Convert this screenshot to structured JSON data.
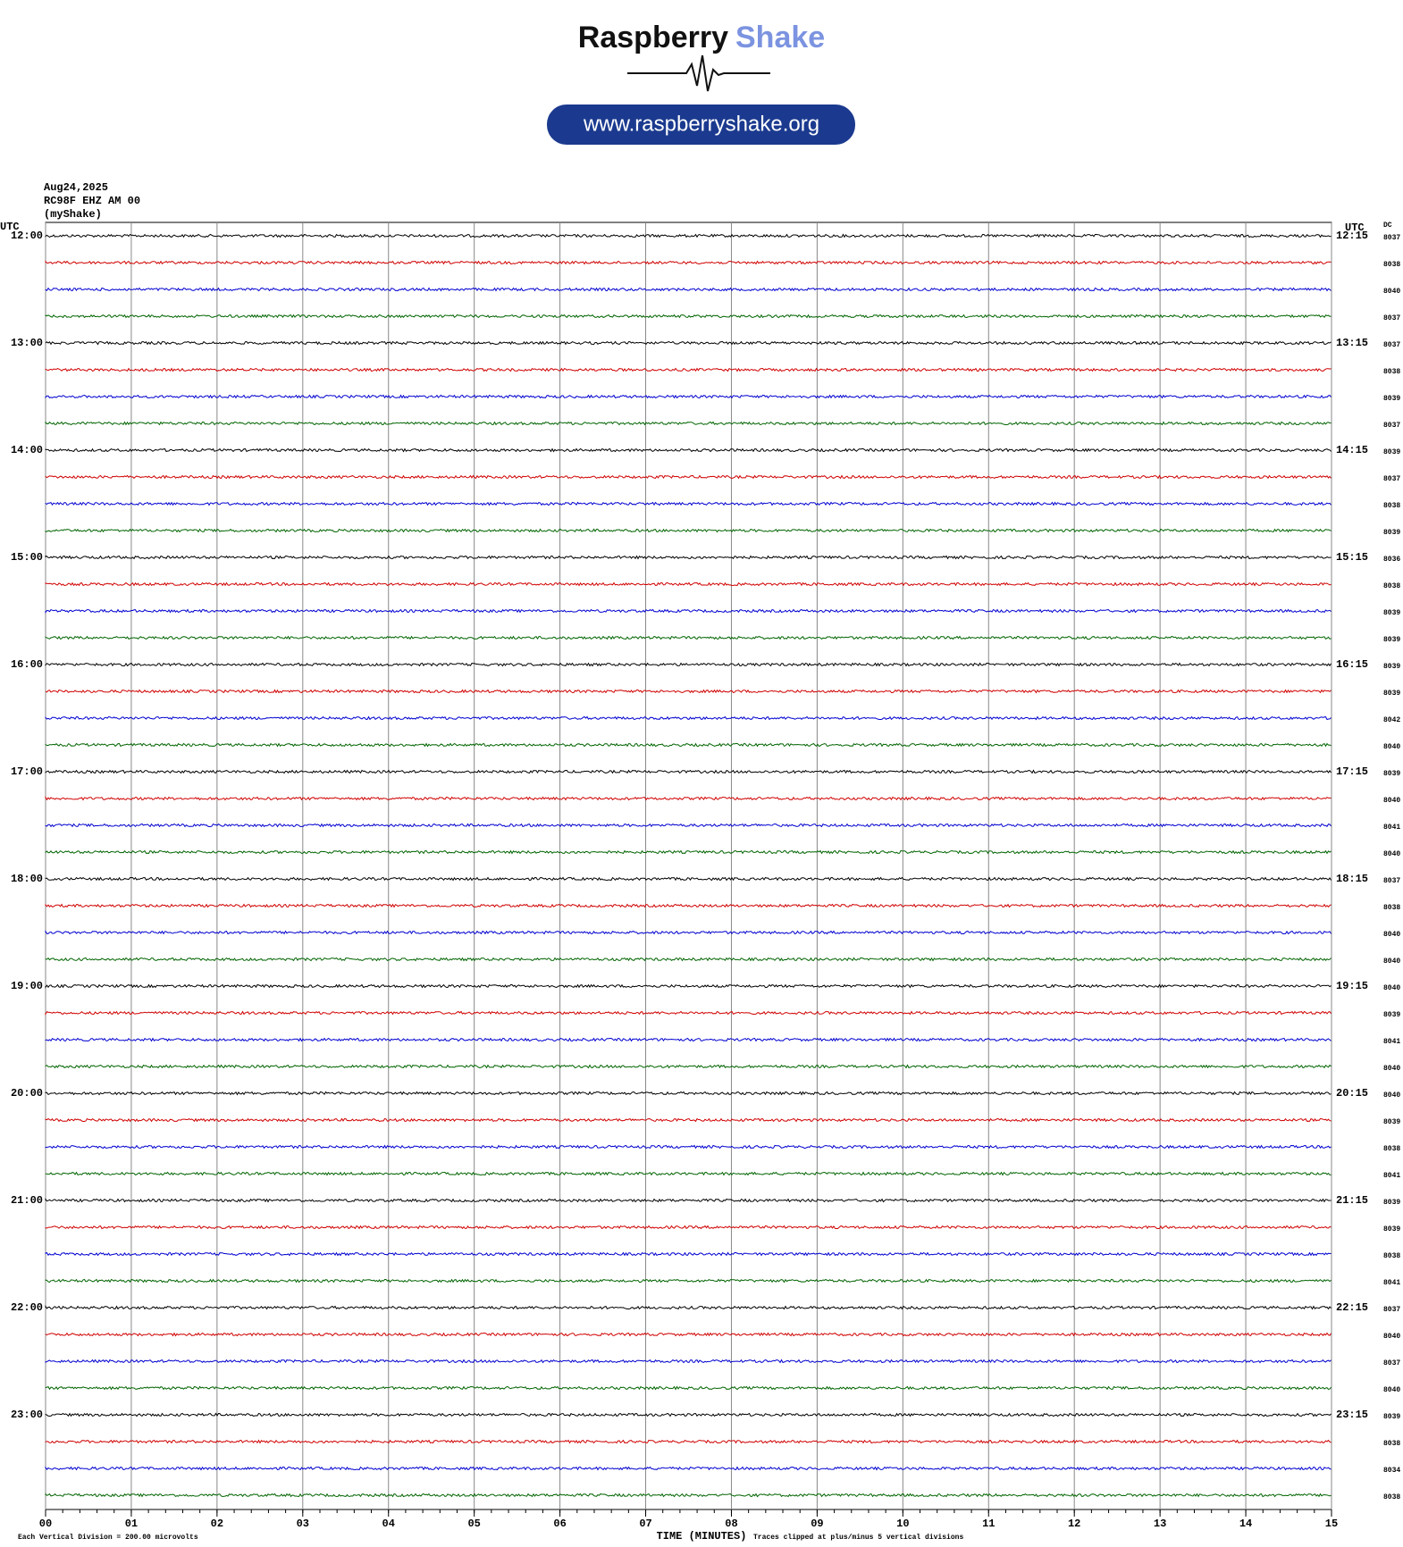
{
  "header": {
    "brand_first": "Raspberry",
    "brand_second": "Shake",
    "url": "www.raspberryshake.org"
  },
  "station": {
    "date": "Aug24,2025",
    "channel": "RC98F EHZ AM 00",
    "network": "(myShake)"
  },
  "plot": {
    "left_axis_title": "UTC",
    "right_axis_title": "UTC",
    "dc_title": "DC",
    "trace_colors": [
      "#000000",
      "#d00000",
      "#0000d0",
      "#006400"
    ],
    "rows": [
      {
        "left": "12:00",
        "right": "12:15",
        "dc": "8037"
      },
      {
        "dc": "8038"
      },
      {
        "dc": "8040"
      },
      {
        "dc": "8037"
      },
      {
        "left": "13:00",
        "right": "13:15",
        "dc": "8037"
      },
      {
        "dc": "8038"
      },
      {
        "dc": "8039"
      },
      {
        "dc": "8037"
      },
      {
        "left": "14:00",
        "right": "14:15",
        "dc": "8039"
      },
      {
        "dc": "8037"
      },
      {
        "dc": "8038"
      },
      {
        "dc": "8039"
      },
      {
        "left": "15:00",
        "right": "15:15",
        "dc": "8036"
      },
      {
        "dc": "8038"
      },
      {
        "dc": "8039"
      },
      {
        "dc": "8039"
      },
      {
        "left": "16:00",
        "right": "16:15",
        "dc": "8039"
      },
      {
        "dc": "8039"
      },
      {
        "dc": "8042"
      },
      {
        "dc": "8040"
      },
      {
        "left": "17:00",
        "right": "17:15",
        "dc": "8039"
      },
      {
        "dc": "8040"
      },
      {
        "dc": "8041"
      },
      {
        "dc": "8040"
      },
      {
        "left": "18:00",
        "right": "18:15",
        "dc": "8037"
      },
      {
        "dc": "8038"
      },
      {
        "dc": "8040"
      },
      {
        "dc": "8040"
      },
      {
        "left": "19:00",
        "right": "19:15",
        "dc": "8040"
      },
      {
        "dc": "8039"
      },
      {
        "dc": "8041"
      },
      {
        "dc": "8040"
      },
      {
        "left": "20:00",
        "right": "20:15",
        "dc": "8040"
      },
      {
        "dc": "8039"
      },
      {
        "dc": "8038"
      },
      {
        "dc": "8041"
      },
      {
        "left": "21:00",
        "right": "21:15",
        "dc": "8039"
      },
      {
        "dc": "8039"
      },
      {
        "dc": "8038"
      },
      {
        "dc": "8041"
      },
      {
        "left": "22:00",
        "right": "22:15",
        "dc": "8037"
      },
      {
        "dc": "8040"
      },
      {
        "dc": "8037"
      },
      {
        "dc": "8040"
      },
      {
        "left": "23:00",
        "right": "23:15",
        "dc": "8039"
      },
      {
        "dc": "8038"
      },
      {
        "dc": "8034"
      },
      {
        "dc": "8038"
      }
    ],
    "xlim": [
      0,
      15
    ],
    "xticks": [
      {
        "value": 0,
        "label": "00"
      },
      {
        "value": 1,
        "label": "01"
      },
      {
        "value": 2,
        "label": "02"
      },
      {
        "value": 3,
        "label": "03"
      },
      {
        "value": 4,
        "label": "04"
      },
      {
        "value": 5,
        "label": "05"
      },
      {
        "value": 6,
        "label": "06"
      },
      {
        "value": 7,
        "label": "07"
      },
      {
        "value": 8,
        "label": "08"
      },
      {
        "value": 9,
        "label": "09"
      },
      {
        "value": 10,
        "label": "10"
      },
      {
        "value": 11,
        "label": "11"
      },
      {
        "value": 12,
        "label": "12"
      },
      {
        "value": 13,
        "label": "13"
      },
      {
        "value": 14,
        "label": "14"
      },
      {
        "value": 15,
        "label": "15"
      }
    ],
    "xlabel": "TIME (MINUTES)",
    "scale_note": "Each Vertical Division =  200.00 microvolts",
    "clip_note": "Traces clipped at plus/minus 5 vertical divisions"
  }
}
